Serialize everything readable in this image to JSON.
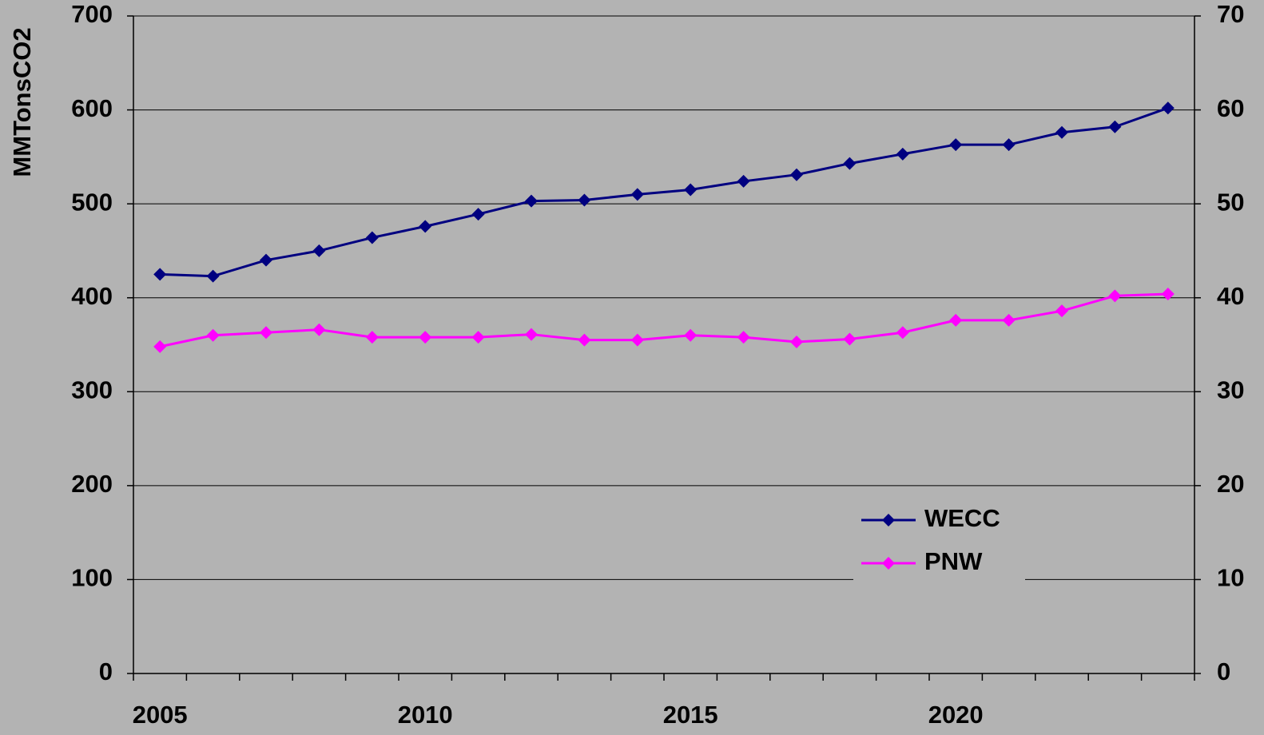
{
  "chart_data": {
    "type": "line",
    "y_label": "MMTonsCO2",
    "categories": [
      "2005",
      null,
      null,
      null,
      null,
      "2010",
      null,
      null,
      null,
      null,
      "2015",
      null,
      null,
      null,
      null,
      "2020",
      null,
      null,
      null,
      null
    ],
    "series": [
      {
        "name": "WECC",
        "color": "#000080",
        "values": [
          425,
          423,
          440,
          450,
          464,
          476,
          489,
          503,
          504,
          510,
          515,
          524,
          531,
          543,
          553,
          563,
          563,
          576,
          582,
          602
        ]
      },
      {
        "name": "PNW",
        "color": "#ff00ff",
        "axis": "y2",
        "values": [
          34.8,
          36.0,
          36.3,
          36.6,
          35.8,
          35.8,
          35.8,
          36.1,
          35.5,
          35.5,
          36.0,
          35.8,
          35.3,
          35.6,
          36.3,
          37.6,
          37.6,
          38.6,
          40.2,
          40.4
        ]
      }
    ],
    "ylim": [
      0,
      700
    ],
    "yticks": [
      0,
      100,
      200,
      300,
      400,
      500,
      600,
      700
    ],
    "y2lim": [
      0,
      70
    ],
    "y2ticks": [
      0,
      10,
      20,
      30,
      40,
      50,
      60,
      70
    ],
    "grid": true,
    "legend": "lower right"
  }
}
